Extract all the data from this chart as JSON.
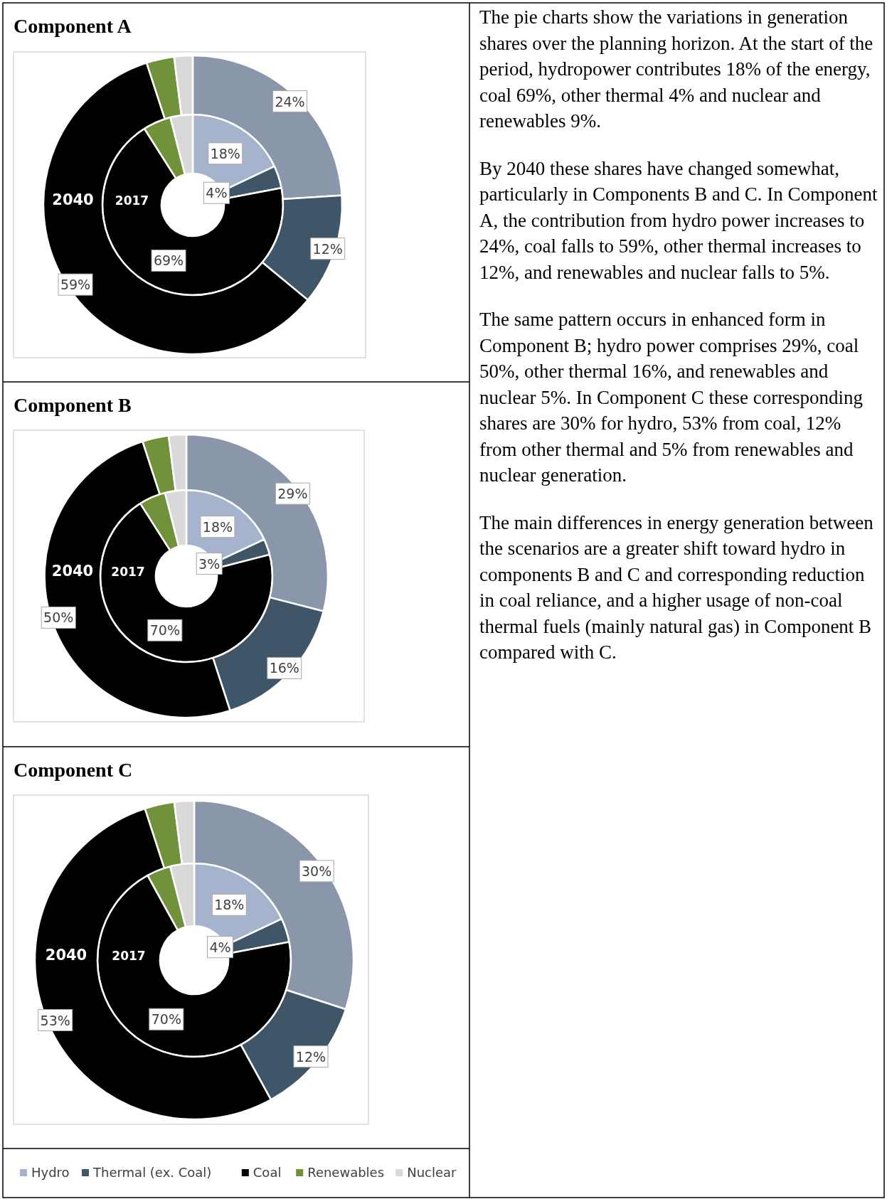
{
  "chart_data": [
    {
      "type": "donut",
      "title": "Component A",
      "categories": [
        null,
        null,
        null,
        null,
        null
      ],
      "series": [
        {
          "name": "2017",
          "colors": [
            "#a5b4cc",
            "#3e5667",
            "#000000",
            "#70923a",
            "#d9d9d9"
          ],
          "values": [
            18,
            4,
            69,
            5,
            4
          ],
          "value_labels": [
            "18%",
            "4%",
            "69%",
            null,
            null
          ]
        },
        {
          "name": "2040",
          "colors": [
            "#8a97aa",
            "#3e5667",
            "#000000",
            "#70923a",
            "#d9d9d9"
          ],
          "values": [
            24,
            12,
            59,
            3,
            2
          ],
          "value_labels": [
            "24%",
            "12%",
            "59%",
            null,
            null
          ]
        }
      ]
    },
    {
      "type": "donut",
      "title": "Component B",
      "categories": [
        null,
        null,
        null,
        null,
        null
      ],
      "series": [
        {
          "name": "2017",
          "colors": [
            "#a5b4cc",
            "#3e5667",
            "#000000",
            "#70923a",
            "#d9d9d9"
          ],
          "values": [
            18,
            3,
            70,
            5,
            4
          ],
          "value_labels": [
            "18%",
            "3%",
            "70%",
            null,
            null
          ]
        },
        {
          "name": "2040",
          "colors": [
            "#8a97aa",
            "#3e5667",
            "#000000",
            "#70923a",
            "#d9d9d9"
          ],
          "values": [
            29,
            16,
            50,
            3,
            2
          ],
          "value_labels": [
            "29%",
            "16%",
            "50%",
            null,
            null
          ]
        }
      ]
    },
    {
      "type": "donut",
      "title": "Component C",
      "categories": [
        "Hydro",
        "Thermal (ex. Coal)",
        "Coal",
        "Renewables",
        "Nuclear"
      ],
      "legend": "bottom",
      "series": [
        {
          "name": "2017",
          "colors": [
            "#a5b4cc",
            "#3e5667",
            "#000000",
            "#70923a",
            "#d9d9d9"
          ],
          "values": [
            18,
            4,
            70,
            4,
            4
          ],
          "value_labels": [
            "18%",
            "4%",
            "70%",
            null,
            null
          ]
        },
        {
          "name": "2040",
          "colors": [
            "#8a97aa",
            "#3e5667",
            "#000000",
            "#70923a",
            "#d9d9d9"
          ],
          "values": [
            30,
            12,
            53,
            3,
            2
          ],
          "value_labels": [
            "30%",
            "12%",
            "53%",
            null,
            null
          ]
        }
      ]
    },
    {
      "type": "other",
      "annotations": [
        "The pie charts show the variations in generation shares over the planning horizon. At the start of the period, hydropower contributes 18% of the energy, coal 69%, other thermal 4% and nuclear and renewables 9%.",
        "By 2040 these shares have changed somewhat, particularly in Components B and C. In Component A, the contribution from hydro power increases to 24%, coal falls to 59%, other thermal increases to 12%, and renewables and nuclear falls to 5%.",
        "The same pattern occurs in enhanced form in Component B; hydro power comprises 29%, coal 50%, other thermal 16%, and renewables and nuclear 5%. In Component C these corresponding shares are 30% for hydro, 53% from coal, 12% from other thermal and 5% from renewables and nuclear generation.",
        "The main differences in energy generation between the scenarios are a greater shift toward hydro in components B and C and corresponding reduction in coal reliance, and a higher usage of non-coal thermal fuels (mainly natural gas) in Component B compared with C."
      ]
    }
  ]
}
